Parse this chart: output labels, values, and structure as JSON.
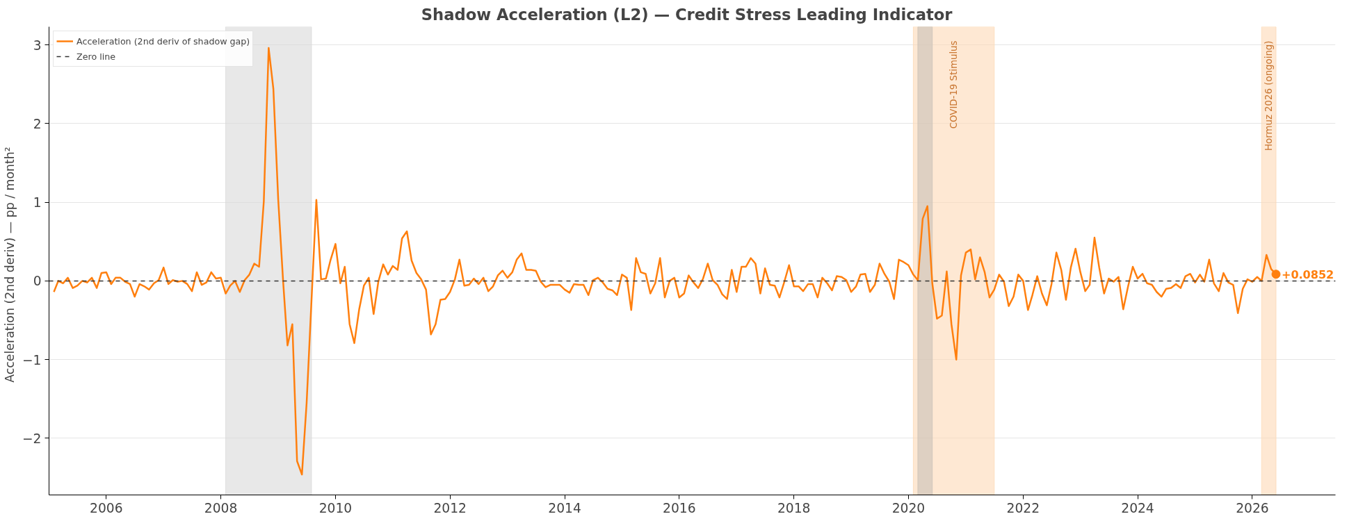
{
  "chart_data": {
    "type": "line",
    "title": "Shadow Acceleration (L2)  —  Credit Stress Leading Indicator",
    "ylabel": "Acceleration (2nd deriv)  —  pp / month²",
    "x": [
      "2005-02",
      "2005-03",
      "2005-04",
      "2005-05",
      "2005-06",
      "2005-07",
      "2005-08",
      "2005-09",
      "2005-10",
      "2005-11",
      "2005-12",
      "2006-01",
      "2006-02",
      "2006-03",
      "2006-04",
      "2006-05",
      "2006-06",
      "2006-07",
      "2006-08",
      "2006-09",
      "2006-10",
      "2006-11",
      "2006-12",
      "2007-01",
      "2007-02",
      "2007-03",
      "2007-04",
      "2007-05",
      "2007-06",
      "2007-07",
      "2007-08",
      "2007-09",
      "2007-10",
      "2007-11",
      "2007-12",
      "2008-01",
      "2008-02",
      "2008-03",
      "2008-04",
      "2008-05",
      "2008-06",
      "2008-07",
      "2008-08",
      "2008-09",
      "2008-10",
      "2008-11",
      "2008-12",
      "2009-01",
      "2009-02",
      "2009-03",
      "2009-04",
      "2009-05",
      "2009-06",
      "2009-07",
      "2009-08",
      "2009-09",
      "2009-10",
      "2009-11",
      "2009-12",
      "2010-01",
      "2010-02",
      "2010-03",
      "2010-04",
      "2010-05",
      "2010-06",
      "2010-07",
      "2010-08",
      "2010-09",
      "2010-10",
      "2010-11",
      "2010-12",
      "2011-01",
      "2011-02",
      "2011-03",
      "2011-04",
      "2011-05",
      "2011-06",
      "2011-07",
      "2011-08",
      "2011-09",
      "2011-10",
      "2011-11",
      "2011-12",
      "2012-01",
      "2012-02",
      "2012-03",
      "2012-04",
      "2012-05",
      "2012-06",
      "2012-07",
      "2012-08",
      "2012-09",
      "2012-10",
      "2012-11",
      "2012-12",
      "2013-01",
      "2013-02",
      "2013-03",
      "2013-04",
      "2013-05",
      "2013-06",
      "2013-07",
      "2013-08",
      "2013-09",
      "2013-10",
      "2013-11",
      "2013-12",
      "2014-01",
      "2014-02",
      "2014-03",
      "2014-04",
      "2014-05",
      "2014-06",
      "2014-07",
      "2014-08",
      "2014-09",
      "2014-10",
      "2014-11",
      "2014-12",
      "2015-01",
      "2015-02",
      "2015-03",
      "2015-04",
      "2015-05",
      "2015-06",
      "2015-07",
      "2015-08",
      "2015-09",
      "2015-10",
      "2015-11",
      "2015-12",
      "2016-01",
      "2016-02",
      "2016-03",
      "2016-04",
      "2016-05",
      "2016-06",
      "2016-07",
      "2016-08",
      "2016-09",
      "2016-10",
      "2016-11",
      "2016-12",
      "2017-01",
      "2017-02",
      "2017-03",
      "2017-04",
      "2017-05",
      "2017-06",
      "2017-07",
      "2017-08",
      "2017-09",
      "2017-10",
      "2017-11",
      "2017-12",
      "2018-01",
      "2018-02",
      "2018-03",
      "2018-04",
      "2018-05",
      "2018-06",
      "2018-07",
      "2018-08",
      "2018-09",
      "2018-10",
      "2018-11",
      "2018-12",
      "2019-01",
      "2019-02",
      "2019-03",
      "2019-04",
      "2019-05",
      "2019-06",
      "2019-07",
      "2019-08",
      "2019-09",
      "2019-10",
      "2019-11",
      "2019-12",
      "2020-01",
      "2020-02",
      "2020-03",
      "2020-04",
      "2020-05",
      "2020-06",
      "2020-07",
      "2020-08",
      "2020-09",
      "2020-10",
      "2020-11",
      "2020-12",
      "2021-01",
      "2021-02",
      "2021-03",
      "2021-04",
      "2021-05",
      "2021-06",
      "2021-07",
      "2021-08",
      "2021-09",
      "2021-10",
      "2021-11",
      "2021-12",
      "2022-01",
      "2022-02",
      "2022-03",
      "2022-04",
      "2022-05",
      "2022-06",
      "2022-07",
      "2022-08",
      "2022-09",
      "2022-10",
      "2022-11",
      "2022-12",
      "2023-01",
      "2023-02",
      "2023-03",
      "2023-04",
      "2023-05",
      "2023-06",
      "2023-07",
      "2023-08",
      "2023-09",
      "2023-10",
      "2023-11",
      "2023-12",
      "2024-01",
      "2024-02",
      "2024-03",
      "2024-04",
      "2024-05",
      "2024-06",
      "2024-07",
      "2024-08",
      "2024-09",
      "2024-10",
      "2024-11",
      "2024-12",
      "2025-01",
      "2025-02",
      "2025-03",
      "2025-04",
      "2025-05",
      "2025-06",
      "2025-07",
      "2025-08",
      "2025-09",
      "2025-10",
      "2025-11",
      "2025-12",
      "2026-01",
      "2026-02",
      "2026-03",
      "2026-04",
      "2026-05",
      "2026-06"
    ],
    "series": [
      {
        "name": "Acceleration (2nd deriv of shadow gap)",
        "color": "#ff7f0e",
        "values": [
          -0.14,
          0,
          -0.03,
          0.04,
          -0.09,
          -0.06,
          0,
          -0.02,
          0.04,
          -0.09,
          0.1,
          0.11,
          -0.04,
          0.04,
          0.04,
          -0.01,
          -0.04,
          -0.2,
          -0.04,
          -0.07,
          -0.11,
          -0.03,
          0.01,
          0.17,
          -0.04,
          0.01,
          -0.01,
          0,
          -0.04,
          -0.13,
          0.11,
          -0.05,
          -0.02,
          0.11,
          0.03,
          0.04,
          -0.16,
          -0.06,
          0,
          -0.14,
          0.01,
          0.08,
          0.22,
          0.18,
          1.01,
          2.96,
          2.44,
          1.03,
          0,
          -0.82,
          -0.55,
          -2.29,
          -2.46,
          -1.55,
          -0.25,
          1.03,
          0.02,
          0.03,
          0.27,
          0.47,
          -0.03,
          0.18,
          -0.55,
          -0.79,
          -0.36,
          -0.06,
          0.04,
          -0.42,
          -0.01,
          0.21,
          0.08,
          0.19,
          0.14,
          0.54,
          0.63,
          0.26,
          0.1,
          0.02,
          -0.11,
          -0.68,
          -0.55,
          -0.24,
          -0.23,
          -0.14,
          0.02,
          0.27,
          -0.06,
          -0.05,
          0.03,
          -0.04,
          0.04,
          -0.13,
          -0.07,
          0.07,
          0.13,
          0.04,
          0.11,
          0.27,
          0.35,
          0.14,
          0.14,
          0.13,
          -0.01,
          -0.08,
          -0.05,
          -0.05,
          -0.05,
          -0.11,
          -0.15,
          -0.04,
          -0.05,
          -0.05,
          -0.18,
          0.01,
          0.04,
          -0.02,
          -0.1,
          -0.12,
          -0.18,
          0.08,
          0.04,
          -0.37,
          0.29,
          0.11,
          0.09,
          -0.16,
          -0.03,
          0.29,
          -0.21,
          0,
          0.04,
          -0.21,
          -0.16,
          0.07,
          -0.02,
          -0.09,
          0.03,
          0.22,
          0.01,
          -0.05,
          -0.17,
          -0.23,
          0.14,
          -0.14,
          0.18,
          0.18,
          0.29,
          0.22,
          -0.16,
          0.16,
          -0.05,
          -0.06,
          -0.21,
          -0.01,
          0.2,
          -0.07,
          -0.07,
          -0.13,
          -0.04,
          -0.04,
          -0.21,
          0.04,
          -0.03,
          -0.12,
          0.06,
          0.05,
          0.01,
          -0.14,
          -0.07,
          0.08,
          0.09,
          -0.14,
          -0.05,
          0.22,
          0.09,
          -0.01,
          -0.23,
          0.27,
          0.24,
          0.2,
          0.08,
          0.01,
          0.79,
          0.95,
          -0.03,
          -0.48,
          -0.44,
          0.12,
          -0.55,
          -1.0,
          0.07,
          0.36,
          0.4,
          0.02,
          0.3,
          0.11,
          -0.21,
          -0.11,
          0.08,
          -0.01,
          -0.32,
          -0.2,
          0.08,
          0,
          -0.37,
          -0.18,
          0.06,
          -0.16,
          -0.31,
          -0.04,
          0.36,
          0.14,
          -0.24,
          0.17,
          0.41,
          0.11,
          -0.13,
          -0.05,
          0.55,
          0.17,
          -0.16,
          0.03,
          -0.01,
          0.05,
          -0.36,
          -0.07,
          0.18,
          0.03,
          0.09,
          -0.03,
          -0.05,
          -0.14,
          -0.2,
          -0.1,
          -0.09,
          -0.04,
          -0.09,
          0.06,
          0.09,
          -0.02,
          0.08,
          -0.01,
          0.27,
          -0.03,
          -0.13,
          0.1,
          -0.02,
          -0.05,
          -0.41,
          -0.1,
          0.02,
          -0.01,
          0.05,
          0,
          0.33,
          0.15,
          0.0852
        ]
      }
    ],
    "xlim": [
      "2005-01",
      "2027-06-15"
    ],
    "xticks": [
      {
        "value": "2006",
        "label": "2006"
      },
      {
        "value": "2008",
        "label": "2008"
      },
      {
        "value": "2010",
        "label": "2010"
      },
      {
        "value": "2012",
        "label": "2012"
      },
      {
        "value": "2014",
        "label": "2014"
      },
      {
        "value": "2016",
        "label": "2016"
      },
      {
        "value": "2018",
        "label": "2018"
      },
      {
        "value": "2020",
        "label": "2020"
      },
      {
        "value": "2022",
        "label": "2022"
      },
      {
        "value": "2024",
        "label": "2024"
      },
      {
        "value": "2026",
        "label": "2026"
      }
    ],
    "ylim": [
      -2.72,
      3.23
    ],
    "yticks": [
      {
        "value": -2,
        "label": "−2"
      },
      {
        "value": -1,
        "label": "−1"
      },
      0,
      1,
      2,
      3
    ],
    "ref_lines": [
      {
        "axis": "y",
        "value": 0,
        "label": "Zero line",
        "color": "#333333",
        "line_style": "dashed"
      }
    ],
    "bands": [
      {
        "axis": "x",
        "from": "2008-02",
        "to": "2009-08",
        "label": null,
        "color": "#d9d9d9"
      },
      {
        "axis": "x",
        "from": "2020-02",
        "to": "2021-07",
        "label": "COVID-19 Stimulus",
        "color": "#fdd9b5"
      },
      {
        "axis": "x",
        "from": "2020-03",
        "to": "2020-06",
        "label": null,
        "color": "#c8c0b8"
      },
      {
        "axis": "x",
        "from": "2026-03",
        "to": "2026-06",
        "label": "Hormuz 2026 (ongoing)",
        "color": "#fdd9b5"
      }
    ],
    "annotations": [
      {
        "text": "+0.0852",
        "x": "2026-06",
        "y": 0.0852
      }
    ],
    "grid": "y",
    "legend": "top left",
    "line_style": "solid",
    "marker": "none"
  }
}
